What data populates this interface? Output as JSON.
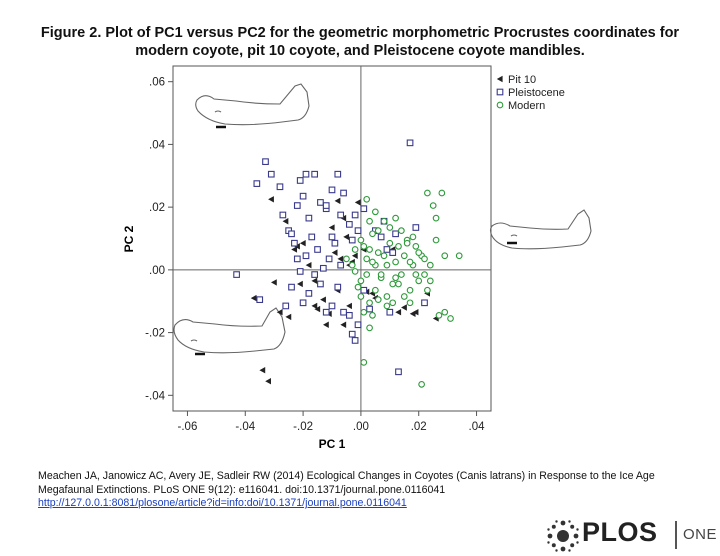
{
  "header": {
    "title_line1": "Figure 2. Plot of PC1 versus PC2 for the geometric morphometric Procrustes coordinates for",
    "title_line2": "modern coyote, pit 10 coyote, and Pleistocene coyote mandibles."
  },
  "citation": {
    "line1": "Meachen JA, Janowicz AC, Avery JE, Sadleir RW (2014) Ecological Changes in Coyotes (Canis latrans) in Response to the Ice Age",
    "line2": "Megafaunal Extinctions. PLoS ONE 9(12): e116041. doi:10.1371/journal.pone.0116041",
    "link": "http://127.0.0.1:8081/plosone/article?id=info:doi/10.1371/journal.pone.0116041"
  },
  "logo": {
    "word": "PLOS",
    "suffix": "ONE",
    "icon": "plos-sunburst-icon"
  },
  "colors": {
    "pit10": "#222222",
    "pleistocene": "#3a3a8c",
    "modern": "#2e9a3a"
  },
  "chart_data": {
    "type": "scatter",
    "xlabel": "PC 1",
    "ylabel": "PC 2",
    "xlim": [
      -0.065,
      0.045
    ],
    "ylim": [
      -0.045,
      0.065
    ],
    "xticks": [
      -0.06,
      -0.04,
      -0.02,
      0.0,
      0.02,
      0.04
    ],
    "xtick_labels": [
      "-.06",
      "-.04",
      "-.02",
      ".00",
      ".02",
      ".04"
    ],
    "yticks": [
      -0.04,
      -0.02,
      0.0,
      0.02,
      0.04,
      0.06
    ],
    "ytick_labels": [
      "-.04",
      "-.02",
      ".00",
      ".02",
      ".04",
      ".06"
    ],
    "reference_lines": {
      "x": 0.0,
      "y": 0.0
    },
    "legend_position": "top-right",
    "series": [
      {
        "name": "Pit 10",
        "marker": "triangle-left",
        "points": [
          [
            -0.031,
            0.0225
          ],
          [
            -0.026,
            0.0155
          ],
          [
            -0.034,
            -0.032
          ],
          [
            -0.032,
            -0.0355
          ],
          [
            -0.037,
            -0.009
          ],
          [
            -0.03,
            -0.004
          ],
          [
            -0.028,
            -0.0135
          ],
          [
            -0.025,
            -0.015
          ],
          [
            -0.023,
            0.0065
          ],
          [
            -0.022,
            0.0075
          ],
          [
            -0.02,
            0.0085
          ],
          [
            -0.018,
            0.0015
          ],
          [
            -0.016,
            -0.0035
          ],
          [
            -0.016,
            -0.0115
          ],
          [
            -0.015,
            -0.0125
          ],
          [
            -0.013,
            -0.0095
          ],
          [
            -0.012,
            -0.0175
          ],
          [
            -0.011,
            -0.014
          ],
          [
            -0.01,
            0.0135
          ],
          [
            -0.009,
            0.0055
          ],
          [
            -0.008,
            -0.0065
          ],
          [
            -0.007,
            0.0035
          ],
          [
            -0.006,
            0.0165
          ],
          [
            -0.005,
            0.0105
          ],
          [
            -0.004,
            0.0015
          ],
          [
            -0.003,
            0.0025
          ],
          [
            -0.006,
            -0.0175
          ],
          [
            -0.004,
            -0.0115
          ],
          [
            -0.002,
            0.0045
          ],
          [
            0.001,
            0.0065
          ],
          [
            0.002,
            -0.007
          ],
          [
            0.004,
            -0.0075
          ],
          [
            0.005,
            -0.009
          ],
          [
            0.011,
            0.0065
          ],
          [
            0.013,
            -0.0135
          ],
          [
            0.015,
            -0.012
          ],
          [
            0.018,
            -0.014
          ],
          [
            0.019,
            -0.0135
          ],
          [
            0.023,
            -0.0075
          ],
          [
            0.026,
            -0.0155
          ],
          [
            -0.021,
            -0.0045
          ],
          [
            -0.008,
            0.022
          ],
          [
            -0.001,
            0.0215
          ]
        ]
      },
      {
        "name": "Pleistocene",
        "marker": "square",
        "points": [
          [
            -0.043,
            -0.0015
          ],
          [
            -0.035,
            -0.0095
          ],
          [
            -0.033,
            0.0345
          ],
          [
            -0.031,
            0.0305
          ],
          [
            -0.036,
            0.0275
          ],
          [
            -0.028,
            0.0265
          ],
          [
            -0.027,
            0.0175
          ],
          [
            -0.025,
            0.0125
          ],
          [
            -0.024,
            0.0115
          ],
          [
            -0.022,
            0.0205
          ],
          [
            -0.021,
            0.0285
          ],
          [
            -0.02,
            0.0235
          ],
          [
            -0.018,
            0.0165
          ],
          [
            -0.016,
            0.0305
          ],
          [
            -0.014,
            0.0215
          ],
          [
            -0.012,
            0.0195
          ],
          [
            -0.01,
            0.0255
          ],
          [
            -0.008,
            0.0305
          ],
          [
            -0.007,
            0.0175
          ],
          [
            -0.006,
            0.0245
          ],
          [
            -0.004,
            0.0145
          ],
          [
            -0.003,
            0.0095
          ],
          [
            -0.002,
            0.0175
          ],
          [
            -0.001,
            0.0125
          ],
          [
            0.001,
            0.0195
          ],
          [
            -0.022,
            0.0035
          ],
          [
            -0.021,
            -0.0005
          ],
          [
            -0.019,
            0.0045
          ],
          [
            -0.017,
            0.0105
          ],
          [
            -0.015,
            0.0065
          ],
          [
            -0.013,
            0.0005
          ],
          [
            -0.011,
            0.0035
          ],
          [
            -0.01,
            0.0105
          ],
          [
            -0.009,
            0.0085
          ],
          [
            -0.024,
            -0.0055
          ],
          [
            -0.02,
            -0.0105
          ],
          [
            -0.018,
            -0.0075
          ],
          [
            -0.016,
            -0.0015
          ],
          [
            -0.014,
            -0.0045
          ],
          [
            -0.012,
            -0.0135
          ],
          [
            -0.01,
            -0.0115
          ],
          [
            -0.008,
            -0.0055
          ],
          [
            -0.006,
            -0.0135
          ],
          [
            -0.004,
            -0.0145
          ],
          [
            -0.002,
            -0.0225
          ],
          [
            -0.001,
            -0.0175
          ],
          [
            0.001,
            -0.0065
          ],
          [
            0.003,
            -0.0125
          ],
          [
            0.005,
            0.0125
          ],
          [
            0.007,
            0.0105
          ],
          [
            0.008,
            0.0155
          ],
          [
            0.009,
            0.0065
          ],
          [
            0.01,
            -0.0135
          ],
          [
            0.011,
            0.0055
          ],
          [
            0.012,
            0.0115
          ],
          [
            0.017,
            0.0405
          ],
          [
            0.019,
            0.0135
          ],
          [
            0.022,
            -0.0105
          ],
          [
            0.013,
            -0.0325
          ],
          [
            -0.026,
            -0.0115
          ],
          [
            -0.007,
            0.0015
          ],
          [
            -0.019,
            0.0305
          ],
          [
            -0.003,
            -0.0205
          ],
          [
            -0.023,
            0.0085
          ],
          [
            -0.012,
            0.0205
          ]
        ]
      },
      {
        "name": "Modern",
        "marker": "circle",
        "points": [
          [
            0.0,
            0.0095
          ],
          [
            0.001,
            0.0075
          ],
          [
            0.002,
            0.0035
          ],
          [
            0.003,
            0.0065
          ],
          [
            0.004,
            0.0115
          ],
          [
            0.005,
            0.0015
          ],
          [
            0.006,
            0.0055
          ],
          [
            0.007,
            -0.0025
          ],
          [
            0.008,
            0.0045
          ],
          [
            0.009,
            0.0015
          ],
          [
            0.01,
            0.0085
          ],
          [
            0.011,
            -0.0045
          ],
          [
            0.012,
            0.0025
          ],
          [
            0.013,
            0.0075
          ],
          [
            0.014,
            -0.0015
          ],
          [
            0.015,
            0.0045
          ],
          [
            0.016,
            0.0095
          ],
          [
            0.017,
            -0.0065
          ],
          [
            0.018,
            0.0015
          ],
          [
            0.019,
            0.0075
          ],
          [
            0.02,
            -0.0035
          ],
          [
            0.021,
            0.0045
          ],
          [
            0.022,
            0.0035
          ],
          [
            0.023,
            -0.0065
          ],
          [
            0.024,
            0.0015
          ],
          [
            0.025,
            0.0205
          ],
          [
            0.026,
            0.0165
          ],
          [
            0.023,
            0.0245
          ],
          [
            0.028,
            0.0245
          ],
          [
            0.027,
            -0.0145
          ],
          [
            0.029,
            -0.0135
          ],
          [
            0.031,
            -0.0155
          ],
          [
            0.034,
            0.0045
          ],
          [
            0.021,
            -0.0365
          ],
          [
            0.017,
            -0.0105
          ],
          [
            0.015,
            -0.0085
          ],
          [
            0.013,
            -0.0045
          ],
          [
            0.011,
            -0.0105
          ],
          [
            0.009,
            -0.0085
          ],
          [
            0.007,
            -0.0015
          ],
          [
            0.005,
            -0.0065
          ],
          [
            0.003,
            -0.0105
          ],
          [
            0.001,
            -0.0135
          ],
          [
            -0.001,
            -0.0055
          ],
          [
            -0.003,
            0.0015
          ],
          [
            -0.005,
            0.0035
          ],
          [
            -0.002,
            0.0065
          ],
          [
            0.0,
            -0.0035
          ],
          [
            0.002,
            -0.0015
          ],
          [
            0.004,
            0.0025
          ],
          [
            0.006,
            0.0125
          ],
          [
            0.008,
            0.0155
          ],
          [
            0.01,
            0.0135
          ],
          [
            0.012,
            0.0165
          ],
          [
            0.014,
            0.0125
          ],
          [
            0.016,
            0.0085
          ],
          [
            0.018,
            0.0105
          ],
          [
            0.02,
            0.0055
          ],
          [
            0.026,
            0.0095
          ],
          [
            0.029,
            0.0045
          ],
          [
            0.022,
            -0.0015
          ],
          [
            0.024,
            -0.0035
          ],
          [
            0.001,
            -0.0295
          ],
          [
            0.003,
            -0.0185
          ],
          [
            0.009,
            -0.0115
          ],
          [
            0.006,
            -0.0095
          ],
          [
            0.003,
            0.0155
          ],
          [
            0.005,
            0.0185
          ],
          [
            0.002,
            0.0225
          ],
          [
            0.017,
            0.0025
          ],
          [
            0.012,
            -0.0025
          ],
          [
            0.019,
            -0.0015
          ],
          [
            -0.002,
            -0.0005
          ],
          [
            0.0,
            -0.0085
          ],
          [
            0.004,
            -0.0145
          ]
        ]
      }
    ]
  }
}
